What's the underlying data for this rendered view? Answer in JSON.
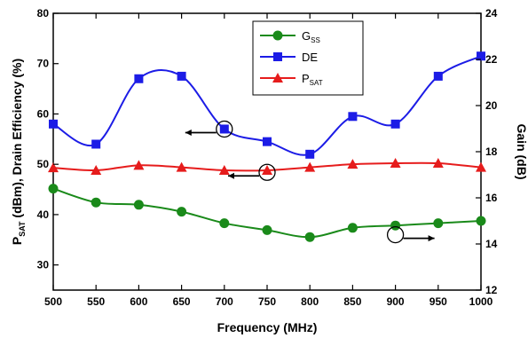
{
  "chart_data": {
    "type": "line",
    "xlabel": "Frequency (MHz)",
    "ylabel_left": {
      "p": "P",
      "sub": "SAT",
      "rest": " (dBm), Drain Efficiency (%)"
    },
    "ylabel_right": "Gain (dB)",
    "x_ticks": [
      "500",
      "550",
      "600",
      "650",
      "700",
      "750",
      "800",
      "850",
      "900",
      "950",
      "1000"
    ],
    "y_left_ticks": [
      "30",
      "40",
      "50",
      "60",
      "70",
      "80"
    ],
    "y_right_ticks": [
      "12",
      "14",
      "16",
      "18",
      "20",
      "22",
      "24"
    ],
    "xlim": [
      500,
      1000
    ],
    "ylim_left": [
      25,
      80
    ],
    "ylim_right": [
      12,
      24
    ],
    "grid": false,
    "legend_position": "top-center",
    "x": [
      500,
      550,
      600,
      650,
      700,
      750,
      800,
      850,
      900,
      950,
      1000
    ],
    "series": [
      {
        "name": "G",
        "name_sub": "SS",
        "axis": "right",
        "color": "#1a8a1a",
        "marker": "circle",
        "values": [
          16.4,
          15.8,
          15.7,
          15.4,
          14.9,
          14.6,
          14.3,
          14.7,
          14.8,
          14.9,
          15.0
        ]
      },
      {
        "name": "DE",
        "name_sub": "",
        "axis": "left",
        "color": "#1c1ce6",
        "marker": "square",
        "values": [
          58.0,
          54.0,
          67.0,
          67.5,
          57.0,
          54.5,
          52.0,
          59.5,
          58.0,
          67.5,
          71.5
        ]
      },
      {
        "name": "P",
        "name_sub": "SAT",
        "axis": "left",
        "color": "#e61c1c",
        "marker": "triangle",
        "values": [
          49.3,
          48.8,
          49.8,
          49.4,
          48.8,
          48.8,
          49.4,
          50.0,
          50.2,
          50.2,
          49.4
        ]
      }
    ],
    "annotations": [
      {
        "x": 700,
        "y": 57,
        "axis": "left",
        "arrow": "left",
        "series": "DE"
      },
      {
        "x": 750,
        "y": 48.4,
        "axis": "left",
        "arrow": "left",
        "series": "P"
      },
      {
        "x": 900,
        "y": 36,
        "axis": "left",
        "arrow": "right",
        "series": "G"
      }
    ]
  }
}
